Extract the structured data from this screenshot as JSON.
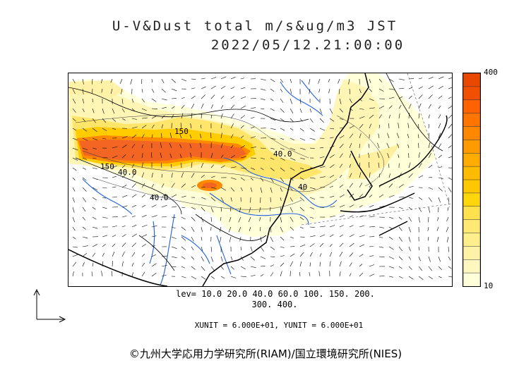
{
  "title": {
    "line1": "U-V&Dust total m/s&ug/m3 JST",
    "line2": "2022/05/12.21:00:00"
  },
  "colorbar": {
    "max_label": "400",
    "min_label": "10",
    "colors": [
      "#ffffd9",
      "#fff7c0",
      "#fff2a6",
      "#ffee8c",
      "#ffe873",
      "#ffe14d",
      "#ffd60a",
      "#ffc800",
      "#ffbb00",
      "#ffac00",
      "#ff9a00",
      "#ff8800",
      "#ff7500",
      "#ff6200",
      "#f05000",
      "#e84800"
    ]
  },
  "contour_levels": {
    "line1": "lev= 10.0 20.0 40.0 60.0 100. 150. 200.",
    "line2": "300. 400."
  },
  "map_labels": [
    "150",
    "40.0",
    "150",
    "40.0",
    "40.0",
    "40"
  ],
  "units": "XUNIT = 6.000E+01, YUNIT = 6.000E+01",
  "credit": "©九州大学応用力学研究所(RIAM)/国立環境研究所(NIES)"
}
